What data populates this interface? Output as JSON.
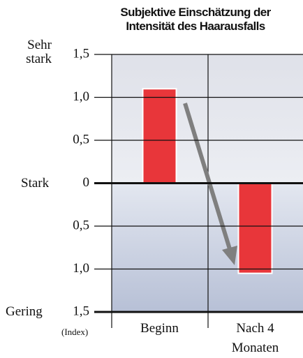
{
  "chart_data": {
    "type": "bar",
    "title": "Subjektive Einschätzung der Intensität des Haarausfalls",
    "categories": [
      "Beginn",
      "Nach 4 Monaten"
    ],
    "values": [
      1.1,
      -1.05
    ],
    "color": "#e8363a",
    "ylim": [
      -1.5,
      1.5
    ],
    "yticks": [
      {
        "value": 1.5,
        "label": "1,5"
      },
      {
        "value": 1,
        "label": "1,0"
      },
      {
        "value": 0.5,
        "label": "0,5"
      },
      0,
      {
        "value": -0.5,
        "label": "0,5"
      },
      {
        "value": -1,
        "label": "1,0"
      },
      {
        "value": -1.5,
        "label": "1,5"
      }
    ],
    "scale_labels": {
      "top": "Sehr stark",
      "middle": "Stark",
      "bottom": "Gering",
      "unit": "(Index)"
    },
    "grid": true
  }
}
